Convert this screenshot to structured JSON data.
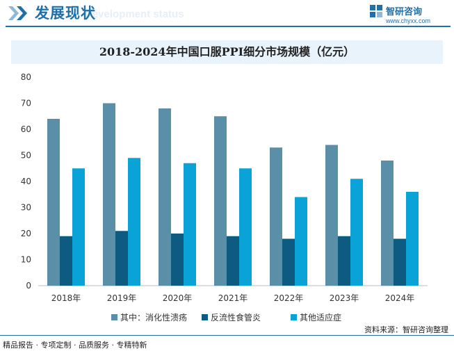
{
  "header": {
    "title": "发展现状",
    "subtitle_en": "Development status"
  },
  "brand": {
    "name": "智研咨询",
    "url": "www.chyxx.com"
  },
  "chart_data": {
    "type": "bar",
    "title": "2018-2024年中国口服PPI细分市场规模（亿元）",
    "categories": [
      "2018年",
      "2019年",
      "2020年",
      "2021年",
      "2022年",
      "2023年",
      "2024年"
    ],
    "series": [
      {
        "name": "其中：消化性溃疡",
        "values": [
          64,
          70,
          68,
          65,
          53,
          54,
          48
        ],
        "color": "#5b8fa8"
      },
      {
        "name": "反流性食管炎",
        "values": [
          19,
          21,
          20,
          19,
          18,
          19,
          18
        ],
        "color": "#0d5b80"
      },
      {
        "name": "其他适应症",
        "values": [
          45,
          49,
          47,
          45,
          34,
          41,
          36
        ],
        "color": "#0aa3d8"
      }
    ],
    "ylim": [
      0,
      80
    ],
    "yticks": [
      0,
      10,
      20,
      30,
      40,
      50,
      60,
      70,
      80
    ],
    "xlabel": "",
    "ylabel": "",
    "grid": false,
    "legend": "bottom"
  },
  "footer": {
    "source": "资料来源：智研咨询整理",
    "services": "精品报告 · 专项定制 · 品质服务 · 专精特新"
  }
}
